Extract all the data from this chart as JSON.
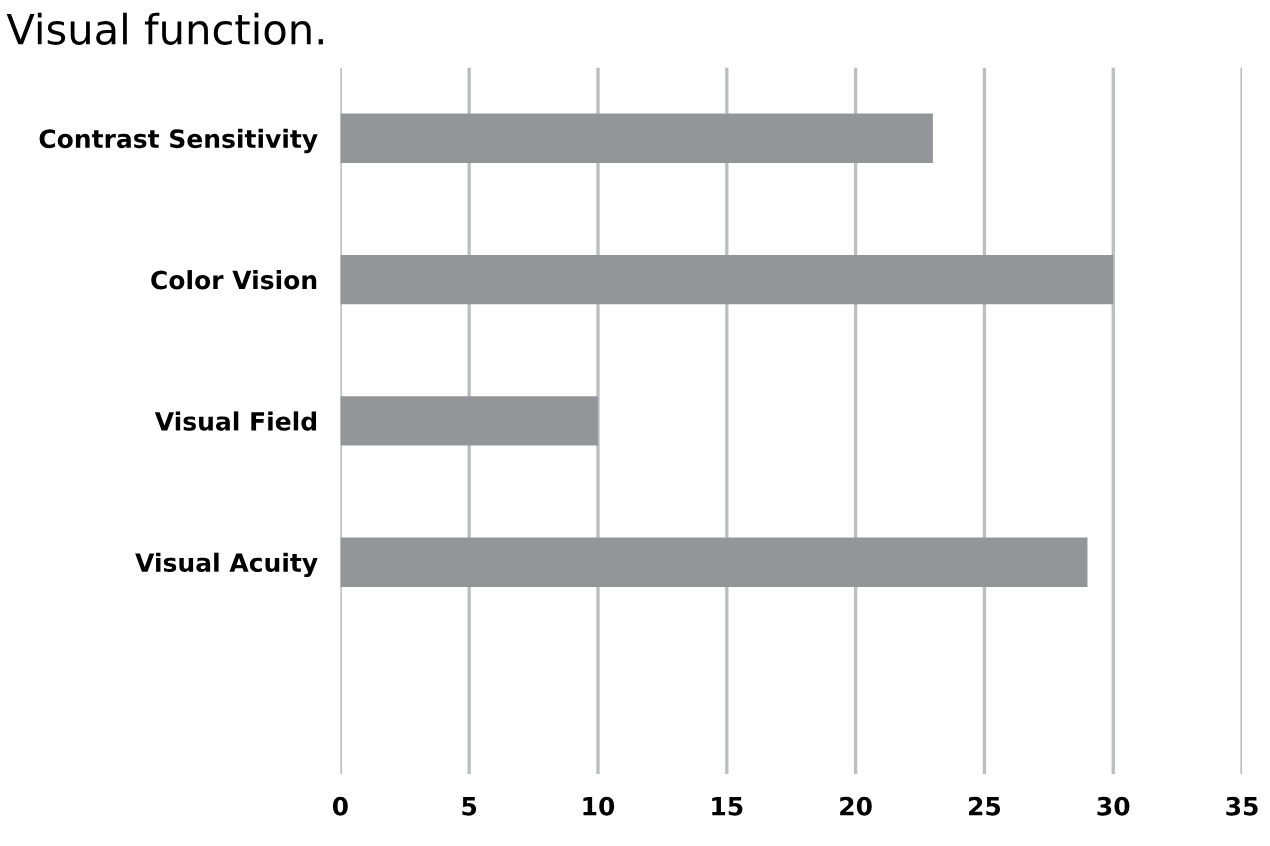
{
  "chart_data": {
    "type": "bar",
    "orientation": "horizontal",
    "title": "Visual function.",
    "categories": [
      "Contrast Sensitivity",
      "Color Vision",
      "Visual Field",
      "Visual Acuity",
      null
    ],
    "values": [
      23,
      30,
      10,
      29,
      null
    ],
    "color": "#939598",
    "xlim": [
      0,
      35
    ],
    "xticks": [
      0,
      5,
      10,
      15,
      20,
      25,
      30,
      35
    ],
    "grid": "x"
  }
}
